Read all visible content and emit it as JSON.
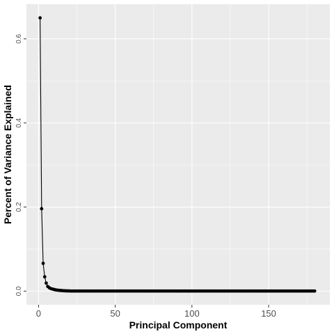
{
  "chart_data": {
    "type": "line",
    "title": "",
    "xlabel": "Principal Component",
    "ylabel": "Percent of Variance Explained",
    "xlim": [
      -7.9,
      189.9
    ],
    "ylim": [
      -0.0325,
      0.6825
    ],
    "x_ticks": [
      0,
      50,
      100,
      150
    ],
    "x_tick_labels": [
      "0",
      "50",
      "100",
      "150"
    ],
    "y_ticks": [
      0.0,
      0.2,
      0.4,
      0.6
    ],
    "y_tick_labels": [
      "0.0",
      "0.2",
      "0.4",
      "0.6"
    ],
    "grid": true,
    "legend": "none",
    "n_components": 180,
    "values_head": [
      0.65,
      0.196,
      0.066,
      0.034,
      0.019,
      0.011,
      0.008,
      0.006,
      0.005,
      0.004,
      0.003,
      0.0025,
      0.002,
      0.0016,
      0.0013,
      0.001,
      0.0008,
      0.0006,
      0.0005,
      0.0004
    ],
    "values_tail": 0.0002,
    "colors": {
      "panel": "#ebebeb",
      "grid": "#ffffff",
      "series": "#000000"
    }
  }
}
